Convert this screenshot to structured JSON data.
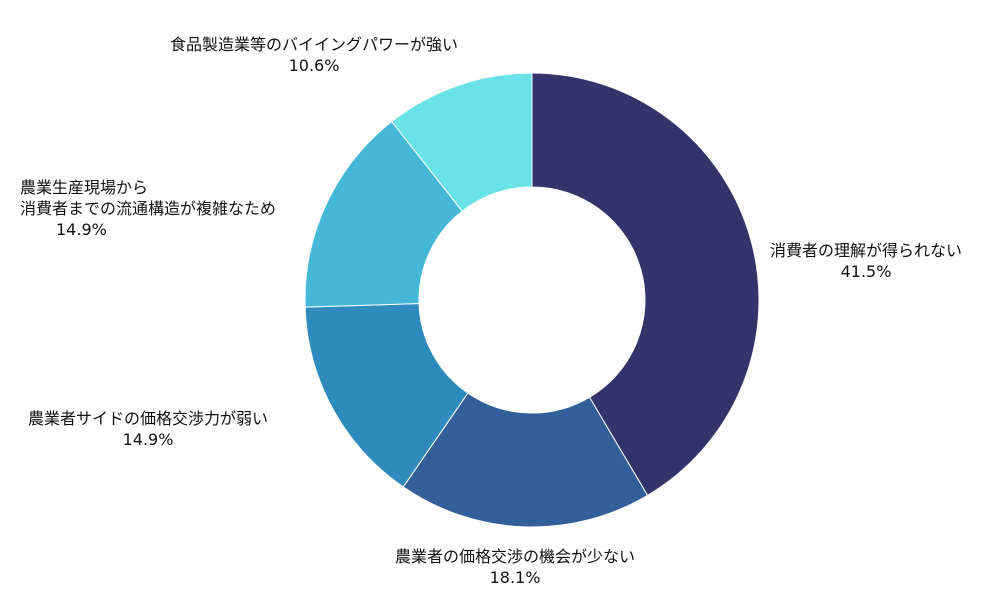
{
  "chart_data": {
    "type": "pie",
    "variant": "donut",
    "title": "",
    "slices": [
      {
        "label_lines": [
          "消費者の理解が得られない"
        ],
        "value": 41.5,
        "value_label": "41.5%",
        "color": "#32346b"
      },
      {
        "label_lines": [
          "農業者の価格交渉の機会が少ない"
        ],
        "value": 18.1,
        "value_label": "18.1%",
        "color": "#325e99"
      },
      {
        "label_lines": [
          "農業者サイドの価格交渉力が弱い"
        ],
        "value": 14.9,
        "value_label": "14.9%",
        "color": "#2f8bbd"
      },
      {
        "label_lines": [
          "農業生産現場から",
          "消費者までの流通構造が複雑なため"
        ],
        "value": 14.9,
        "value_label": "14.9%",
        "color": "#45b8d8"
      },
      {
        "label_lines": [
          "食品製造業等のバイイングパワーが強い"
        ],
        "value": 10.6,
        "value_label": "10.6%",
        "color": "#6ae3e8"
      }
    ],
    "start": "top",
    "direction": "clockwise",
    "legend": "none"
  }
}
